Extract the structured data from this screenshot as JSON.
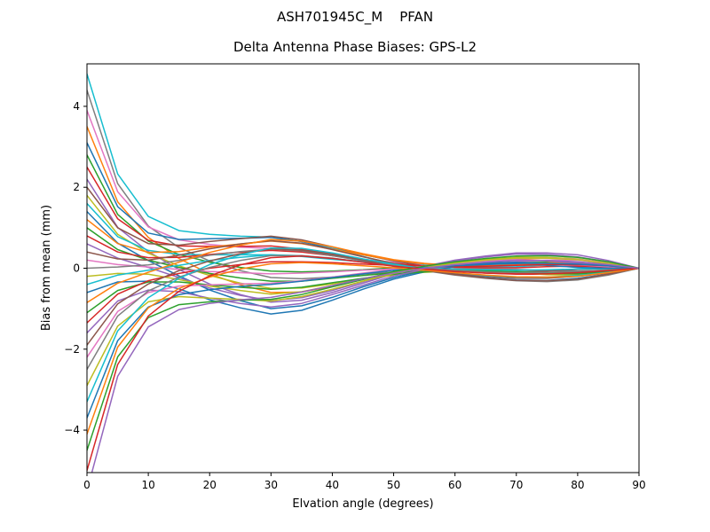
{
  "chart_data": {
    "type": "line",
    "title": "ASH701945C_M    PFAN",
    "subtitle": "Delta Antenna Phase Biases: GPS-L2",
    "xlabel": "Elvation angle (degrees)",
    "ylabel": "Bias from mean (mm)",
    "xlim": [
      0,
      90
    ],
    "ylim": [
      -5.05,
      5.05
    ],
    "xticks": [
      0,
      10,
      20,
      30,
      40,
      50,
      60,
      70,
      80,
      90
    ],
    "yticks": [
      -4,
      -2,
      0,
      2,
      4
    ],
    "grid": false,
    "legend": "none",
    "line_width": 1.5,
    "x": [
      0,
      5,
      10,
      15,
      20,
      25,
      30,
      35,
      40,
      45,
      50,
      55,
      60,
      65,
      70,
      75,
      80,
      85,
      90
    ],
    "series": [
      {
        "color": "#17becf",
        "values": [
          4.8,
          2.33,
          1.28,
          0.93,
          0.84,
          0.79,
          0.77,
          0.66,
          0.49,
          0.33,
          0.19,
          0.1,
          0.05,
          0.03,
          0.04,
          0.08,
          0.1,
          0.06,
          0
        ]
      },
      {
        "color": "#7f7f7f",
        "values": [
          4.4,
          2.09,
          1.04,
          0.51,
          0.18,
          -0.06,
          -0.23,
          -0.26,
          -0.22,
          -0.15,
          -0.09,
          -0.04,
          -0.02,
          -0.02,
          -0.03,
          -0.06,
          -0.07,
          -0.05,
          0
        ]
      },
      {
        "color": "#e377c2",
        "values": [
          3.9,
          1.89,
          1.02,
          0.7,
          0.59,
          0.52,
          0.49,
          0.41,
          0.31,
          0.22,
          0.15,
          0.11,
          0.1,
          0.12,
          0.16,
          0.2,
          0.2,
          0.12,
          0
        ]
      },
      {
        "color": "#ff7f0e",
        "values": [
          3.5,
          1.64,
          0.76,
          0.24,
          -0.14,
          -0.41,
          -0.6,
          -0.59,
          -0.45,
          -0.28,
          -0.12,
          0,
          0.11,
          0.17,
          0.21,
          0.19,
          0.15,
          0.08,
          0
        ]
      },
      {
        "color": "#1f77b4",
        "values": [
          3.1,
          1.52,
          0.87,
          0.71,
          0.73,
          0.74,
          0.76,
          0.66,
          0.48,
          0.29,
          0.11,
          -0.03,
          -0.15,
          -0.23,
          -0.29,
          -0.3,
          -0.25,
          -0.15,
          0
        ]
      },
      {
        "color": "#2ca02c",
        "values": [
          2.8,
          1.33,
          0.67,
          0.34,
          0.15,
          0.02,
          -0.07,
          -0.09,
          -0.07,
          -0.04,
          0.01,
          0.04,
          0.08,
          0.12,
          0.14,
          0.15,
          0.13,
          0.08,
          0
        ]
      },
      {
        "color": "#d62728",
        "values": [
          2.5,
          1.22,
          0.69,
          0.55,
          0.54,
          0.54,
          0.55,
          0.47,
          0.35,
          0.22,
          0.1,
          0,
          -0.07,
          -0.12,
          -0.15,
          -0.15,
          -0.12,
          -0.07,
          0
        ]
      },
      {
        "color": "#9467bd",
        "values": [
          2.2,
          1.01,
          0.41,
          -0.03,
          -0.39,
          -0.65,
          -0.84,
          -0.79,
          -0.6,
          -0.37,
          -0.14,
          0.03,
          0.18,
          0.28,
          0.35,
          0.34,
          0.28,
          0.16,
          0
        ]
      },
      {
        "color": "#8c564b",
        "values": [
          2,
          1,
          0.61,
          0.57,
          0.66,
          0.73,
          0.79,
          0.7,
          0.53,
          0.34,
          0.18,
          0.06,
          -0.03,
          -0.08,
          -0.09,
          -0.07,
          -0.03,
          -0.01,
          0
        ]
      },
      {
        "color": "#bcbd22",
        "values": [
          1.8,
          0.84,
          0.37,
          0.06,
          -0.18,
          -0.37,
          -0.5,
          -0.49,
          -0.39,
          -0.27,
          -0.17,
          -0.1,
          -0.07,
          -0.08,
          -0.11,
          -0.16,
          -0.17,
          -0.11,
          0
        ]
      },
      {
        "color": "#17becf",
        "values": [
          1.6,
          0.78,
          0.44,
          0.34,
          0.33,
          0.33,
          0.33,
          0.29,
          0.22,
          0.16,
          0.1,
          0.07,
          0.06,
          0.06,
          0.08,
          0.11,
          0.11,
          0.07,
          0
        ]
      },
      {
        "color": "#1f77b4",
        "values": [
          1.4,
          0.62,
          0.19,
          -0.19,
          -0.54,
          -0.8,
          -1,
          -0.93,
          -0.72,
          -0.46,
          -0.23,
          -0.06,
          0.07,
          0.13,
          0.15,
          0.12,
          0.07,
          0.03,
          0
        ]
      },
      {
        "color": "#ff7f0e",
        "values": [
          1.2,
          0.61,
          0.39,
          0.41,
          0.52,
          0.6,
          0.67,
          0.61,
          0.47,
          0.33,
          0.2,
          0.11,
          0.07,
          0.07,
          0.09,
          0.13,
          0.15,
          0.1,
          0
        ]
      },
      {
        "color": "#2ca02c",
        "values": [
          1,
          0.46,
          0.2,
          0.02,
          -0.13,
          -0.24,
          -0.32,
          -0.32,
          -0.25,
          -0.18,
          -0.11,
          -0.07,
          -0.05,
          -0.06,
          -0.08,
          -0.11,
          -0.12,
          -0.07,
          0
        ]
      },
      {
        "color": "#d62728",
        "values": [
          0.8,
          0.4,
          0.26,
          0.27,
          0.34,
          0.4,
          0.44,
          0.4,
          0.31,
          0.21,
          0.12,
          0.06,
          0.02,
          0.01,
          0.01,
          0.04,
          0.05,
          0.03,
          0
        ]
      },
      {
        "color": "#9467bd",
        "values": [
          0.6,
          0.25,
          0.02,
          -0.23,
          -0.49,
          -0.67,
          -0.8,
          -0.73,
          -0.55,
          -0.33,
          -0.12,
          0.05,
          0.2,
          0.3,
          0.38,
          0.38,
          0.33,
          0.19,
          0
        ]
      },
      {
        "color": "#8c564b",
        "values": [
          0.4,
          0.23,
          0.2,
          0.32,
          0.48,
          0.6,
          0.68,
          0.62,
          0.46,
          0.28,
          0.12,
          -0.01,
          -0.13,
          -0.2,
          -0.25,
          -0.25,
          -0.2,
          -0.12,
          0
        ]
      },
      {
        "color": "#e377c2",
        "values": [
          0.2,
          0.09,
          0.03,
          -0.03,
          -0.08,
          -0.11,
          -0.14,
          -0.12,
          -0.09,
          -0.05,
          -0.02,
          0.02,
          0.04,
          0.07,
          0.08,
          0.09,
          0.08,
          0.04,
          0
        ]
      },
      {
        "color": "#7f7f7f",
        "values": [
          0,
          0.03,
          0.08,
          0.19,
          0.32,
          0.41,
          0.47,
          0.43,
          0.31,
          0.18,
          0.05,
          -0.06,
          -0.17,
          -0.25,
          -0.31,
          -0.33,
          -0.29,
          -0.17,
          0
        ]
      },
      {
        "color": "#bcbd22",
        "values": [
          -0.2,
          -0.13,
          -0.15,
          -0.28,
          -0.44,
          -0.55,
          -0.64,
          -0.58,
          -0.43,
          -0.26,
          -0.1,
          0.03,
          0.14,
          0.22,
          0.27,
          0.27,
          0.23,
          0.13,
          0
        ]
      },
      {
        "color": "#17becf",
        "values": [
          -0.4,
          -0.17,
          -0.05,
          0.07,
          0.19,
          0.27,
          0.33,
          0.31,
          0.24,
          0.16,
          0.08,
          0.02,
          -0.02,
          -0.04,
          -0.05,
          -0.04,
          -0.02,
          -0.01,
          0
        ]
      },
      {
        "color": "#1f77b4",
        "values": [
          -0.6,
          -0.34,
          -0.32,
          -0.51,
          -0.78,
          -0.98,
          -1.13,
          -1.04,
          -0.79,
          -0.52,
          -0.27,
          -0.09,
          0.04,
          0.1,
          0.11,
          0.07,
          0.02,
          0,
          0
        ]
      },
      {
        "color": "#ff7f0e",
        "values": [
          -0.85,
          -0.37,
          -0.1,
          0.15,
          0.39,
          0.57,
          0.71,
          0.67,
          0.53,
          0.36,
          0.21,
          0.12,
          0.06,
          0.06,
          0.08,
          0.13,
          0.15,
          0.1,
          0
        ]
      },
      {
        "color": "#2ca02c",
        "values": [
          -1.1,
          -0.55,
          -0.34,
          -0.34,
          -0.41,
          -0.47,
          -0.52,
          -0.47,
          -0.36,
          -0.25,
          -0.15,
          -0.09,
          -0.06,
          -0.07,
          -0.09,
          -0.13,
          -0.14,
          -0.09,
          0
        ]
      },
      {
        "color": "#d62728",
        "values": [
          -1.35,
          -0.64,
          -0.31,
          -0.13,
          0,
          0.09,
          0.16,
          0.16,
          0.14,
          0.1,
          0.07,
          0.05,
          0.04,
          0.05,
          0.07,
          0.09,
          0.09,
          0.06,
          0
        ]
      },
      {
        "color": "#9467bd",
        "values": [
          -1.6,
          -0.81,
          -0.54,
          -0.58,
          -0.74,
          -0.87,
          -0.96,
          -0.87,
          -0.65,
          -0.42,
          -0.19,
          -0.03,
          0.09,
          0.16,
          0.2,
          0.18,
          0.13,
          0.07,
          0
        ]
      },
      {
        "color": "#8c564b",
        "values": [
          -1.9,
          -0.88,
          -0.39,
          -0.06,
          0.18,
          0.36,
          0.48,
          0.45,
          0.34,
          0.2,
          0.06,
          -0.05,
          -0.16,
          -0.24,
          -0.3,
          -0.31,
          -0.27,
          -0.15,
          0
        ]
      },
      {
        "color": "#e377c2",
        "values": [
          -2.2,
          -1.07,
          -0.6,
          -0.44,
          -0.41,
          -0.39,
          -0.37,
          -0.31,
          -0.22,
          -0.12,
          -0.03,
          0.05,
          0.12,
          0.18,
          0.23,
          0.25,
          0.22,
          0.13,
          0
        ]
      },
      {
        "color": "#7f7f7f",
        "values": [
          -2.5,
          -1.18,
          -0.56,
          -0.22,
          0.02,
          0.19,
          0.31,
          0.31,
          0.25,
          0.15,
          0.07,
          0,
          -0.05,
          -0.09,
          -0.11,
          -0.1,
          -0.08,
          -0.04,
          0
        ]
      },
      {
        "color": "#bcbd22",
        "values": [
          -2.9,
          -1.43,
          -0.83,
          -0.7,
          -0.74,
          -0.77,
          -0.81,
          -0.7,
          -0.52,
          -0.32,
          -0.13,
          0.01,
          0.13,
          0.2,
          0.25,
          0.25,
          0.21,
          0.12,
          0
        ]
      },
      {
        "color": "#17becf",
        "values": [
          -3.3,
          -1.55,
          -0.73,
          -0.25,
          0.09,
          0.33,
          0.5,
          0.49,
          0.38,
          0.23,
          0.1,
          -0.01,
          -0.11,
          -0.18,
          -0.22,
          -0.22,
          -0.18,
          -0.1,
          0
        ]
      },
      {
        "color": "#1f77b4",
        "values": [
          -3.7,
          -1.79,
          -0.96,
          -0.65,
          -0.53,
          -0.45,
          -0.4,
          -0.32,
          -0.23,
          -0.14,
          -0.05,
          0.01,
          0.06,
          0.09,
          0.12,
          0.12,
          0.1,
          0.06,
          0
        ]
      },
      {
        "color": "#ff7f0e",
        "values": [
          -4.1,
          -1.95,
          -0.98,
          -0.5,
          -0.22,
          -0.02,
          0.11,
          0.14,
          0.11,
          0.06,
          0.01,
          -0.05,
          -0.11,
          -0.17,
          -0.21,
          -0.22,
          -0.2,
          -0.11,
          0
        ]
      },
      {
        "color": "#2ca02c",
        "values": [
          -4.5,
          -2.19,
          -1.22,
          -0.9,
          -0.83,
          -0.79,
          -0.77,
          -0.65,
          -0.46,
          -0.28,
          -0.08,
          0.05,
          0.16,
          0.24,
          0.3,
          0.31,
          0.27,
          0.16,
          0
        ]
      },
      {
        "color": "#d62728",
        "values": [
          -5,
          -2.38,
          -1.18,
          -0.57,
          -0.19,
          0.08,
          0.26,
          0.3,
          0.24,
          0.15,
          0.05,
          -0.02,
          -0.08,
          -0.12,
          -0.14,
          -0.14,
          -0.11,
          -0.06,
          0
        ]
      },
      {
        "color": "#9467bd",
        "values": [
          -5.5,
          -2.67,
          -1.45,
          -1.02,
          -0.87,
          -0.78,
          -0.72,
          -0.59,
          -0.43,
          -0.26,
          -0.12,
          0,
          0.09,
          0.15,
          0.19,
          0.19,
          0.16,
          0.09,
          0
        ]
      }
    ],
    "axis_color": "#000000",
    "background_color": "#ffffff"
  }
}
